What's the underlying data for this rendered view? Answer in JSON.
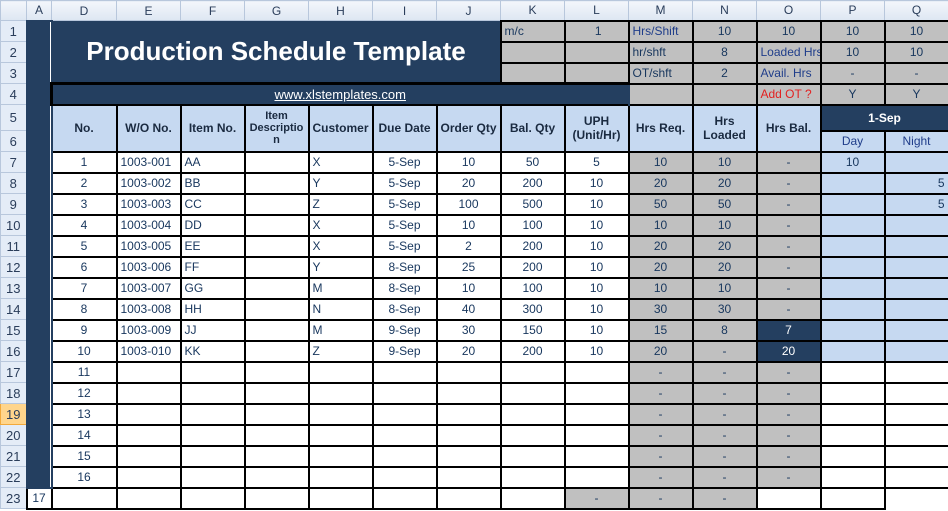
{
  "columns": [
    "A",
    "D",
    "E",
    "F",
    "G",
    "H",
    "I",
    "J",
    "K",
    "L",
    "M",
    "N",
    "O",
    "P",
    "Q"
  ],
  "title": "Production Schedule Template",
  "website": "www.xlstemplates.com",
  "params": {
    "mc_label": "m/c",
    "mc_value": "1",
    "hrs_shift_label": "Hrs/Shift",
    "hrs_shift_value": "10",
    "o1": "10",
    "p1": "10",
    "q1": "10",
    "hr_shft_label": "hr/shft",
    "hr_shft_value": "8",
    "loaded_label": "Loaded Hrs",
    "p2": "10",
    "q2": "10",
    "ot_label": "OT/shft",
    "ot_value": "2",
    "avail_label": "Avail. Hrs",
    "p3": "-",
    "q3": "-",
    "addot_label": "Add OT ?",
    "p4": "Y",
    "q4": "Y"
  },
  "headers": {
    "no": "No.",
    "wo": "W/O No.",
    "item": "Item No.",
    "desc": "Item Descriptio n",
    "customer": "Customer",
    "due": "Due Date",
    "order": "Order Qty",
    "bal": "Bal. Qty",
    "uph": "UPH (Unit/Hr)",
    "req": "Hrs Req.",
    "loaded": "Hrs Loaded",
    "hbal": "Hrs Bal.",
    "date": "1-Sep",
    "day": "Day",
    "night": "Night"
  },
  "rows": [
    {
      "r": 7,
      "no": "1",
      "wo": "1003-001",
      "item": "AA",
      "desc": "",
      "cust": "X",
      "due": "5-Sep",
      "order": "10",
      "bal": "50",
      "uph": "5",
      "req": "10",
      "loaded": "10",
      "hbal": "-",
      "day": "10",
      "night": ""
    },
    {
      "r": 8,
      "no": "2",
      "wo": "1003-002",
      "item": "BB",
      "desc": "",
      "cust": "Y",
      "due": "5-Sep",
      "order": "20",
      "bal": "200",
      "uph": "10",
      "req": "20",
      "loaded": "20",
      "hbal": "-",
      "day": "",
      "night": "5"
    },
    {
      "r": 9,
      "no": "3",
      "wo": "1003-003",
      "item": "CC",
      "desc": "",
      "cust": "Z",
      "due": "5-Sep",
      "order": "100",
      "bal": "500",
      "uph": "10",
      "req": "50",
      "loaded": "50",
      "hbal": "-",
      "day": "",
      "night": "5"
    },
    {
      "r": 10,
      "no": "4",
      "wo": "1003-004",
      "item": "DD",
      "desc": "",
      "cust": "X",
      "due": "5-Sep",
      "order": "10",
      "bal": "100",
      "uph": "10",
      "req": "10",
      "loaded": "10",
      "hbal": "-",
      "day": "",
      "night": ""
    },
    {
      "r": 11,
      "no": "5",
      "wo": "1003-005",
      "item": "EE",
      "desc": "",
      "cust": "X",
      "due": "5-Sep",
      "order": "2",
      "bal": "200",
      "uph": "10",
      "req": "20",
      "loaded": "20",
      "hbal": "-",
      "day": "",
      "night": ""
    },
    {
      "r": 12,
      "no": "6",
      "wo": "1003-006",
      "item": "FF",
      "desc": "",
      "cust": "Y",
      "due": "8-Sep",
      "order": "25",
      "bal": "200",
      "uph": "10",
      "req": "20",
      "loaded": "20",
      "hbal": "-",
      "day": "",
      "night": ""
    },
    {
      "r": 13,
      "no": "7",
      "wo": "1003-007",
      "item": "GG",
      "desc": "",
      "cust": "M",
      "due": "8-Sep",
      "order": "10",
      "bal": "100",
      "uph": "10",
      "req": "10",
      "loaded": "10",
      "hbal": "-",
      "day": "",
      "night": ""
    },
    {
      "r": 14,
      "no": "8",
      "wo": "1003-008",
      "item": "HH",
      "desc": "",
      "cust": "N",
      "due": "8-Sep",
      "order": "40",
      "bal": "300",
      "uph": "10",
      "req": "30",
      "loaded": "30",
      "hbal": "-",
      "day": "",
      "night": ""
    },
    {
      "r": 15,
      "no": "9",
      "wo": "1003-009",
      "item": "JJ",
      "desc": "",
      "cust": "M",
      "due": "9-Sep",
      "order": "30",
      "bal": "150",
      "uph": "10",
      "req": "15",
      "loaded": "8",
      "hbal": "7",
      "day": "",
      "night": ""
    },
    {
      "r": 16,
      "no": "10",
      "wo": "1003-010",
      "item": "KK",
      "desc": "",
      "cust": "Z",
      "due": "9-Sep",
      "order": "20",
      "bal": "200",
      "uph": "10",
      "req": "20",
      "loaded": "-",
      "hbal": "20",
      "day": "",
      "night": ""
    },
    {
      "r": 17,
      "no": "11",
      "req": "-",
      "loaded": "-",
      "hbal": "-"
    },
    {
      "r": 18,
      "no": "12",
      "req": "-",
      "loaded": "-",
      "hbal": "-"
    },
    {
      "r": 19,
      "no": "13",
      "req": "-",
      "loaded": "-",
      "hbal": "-"
    },
    {
      "r": 20,
      "no": "14",
      "req": "-",
      "loaded": "-",
      "hbal": "-"
    },
    {
      "r": 21,
      "no": "15",
      "req": "-",
      "loaded": "-",
      "hbal": "-"
    },
    {
      "r": 22,
      "no": "16",
      "req": "-",
      "loaded": "-",
      "hbal": "-"
    },
    {
      "r": 23,
      "no": "17",
      "req": "-",
      "loaded": "-",
      "hbal": "-"
    }
  ],
  "selected_row": 19,
  "colors": {
    "navy": "#243f60",
    "light_blue": "#c6d9f1",
    "gray": "#c0c0c0",
    "alert_red": "#e32020"
  }
}
